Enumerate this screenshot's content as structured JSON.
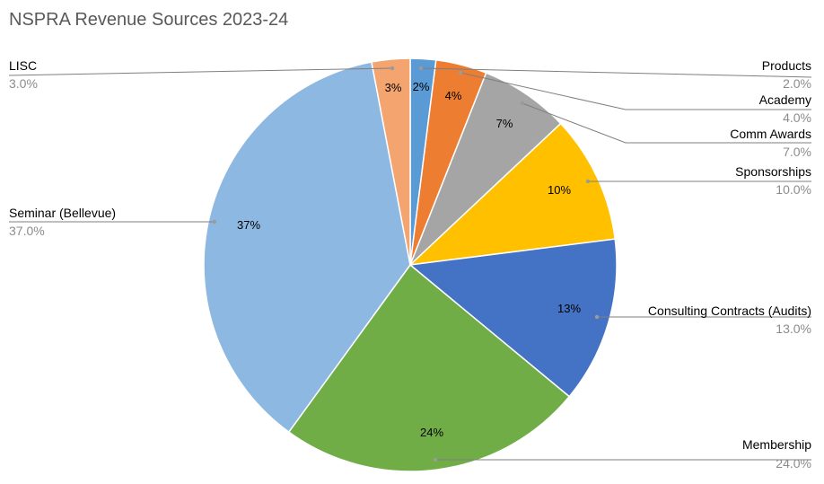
{
  "chart_data": {
    "type": "pie",
    "title": "NSPRA Revenue Sources 2023-24",
    "slices": [
      {
        "label": "Products",
        "value": 2.0,
        "pct_label": "2%",
        "legend_pct": "2.0%",
        "color": "#5B9BD5",
        "side": "right"
      },
      {
        "label": "Academy",
        "value": 4.0,
        "pct_label": "4%",
        "legend_pct": "4.0%",
        "color": "#ED7D31",
        "side": "right"
      },
      {
        "label": "Comm Awards",
        "value": 7.0,
        "pct_label": "7%",
        "legend_pct": "7.0%",
        "color": "#A5A5A5",
        "side": "right"
      },
      {
        "label": "Sponsorships",
        "value": 10.0,
        "pct_label": "10%",
        "legend_pct": "10.0%",
        "color": "#FFC000",
        "side": "right"
      },
      {
        "label": "Consulting Contracts (Audits)",
        "value": 13.0,
        "pct_label": "13%",
        "legend_pct": "13.0%",
        "color": "#4472C4",
        "side": "right"
      },
      {
        "label": "Membership",
        "value": 24.0,
        "pct_label": "24%",
        "legend_pct": "24.0%",
        "color": "#70AD47",
        "side": "right"
      },
      {
        "label": "Seminar (Bellevue)",
        "value": 37.0,
        "pct_label": "37%",
        "legend_pct": "37.0%",
        "color": "#8CB8E2",
        "side": "left"
      },
      {
        "label": "LISC",
        "value": 3.0,
        "pct_label": "3%",
        "legend_pct": "3.0%",
        "color": "#F4A46F",
        "side": "left"
      }
    ]
  }
}
